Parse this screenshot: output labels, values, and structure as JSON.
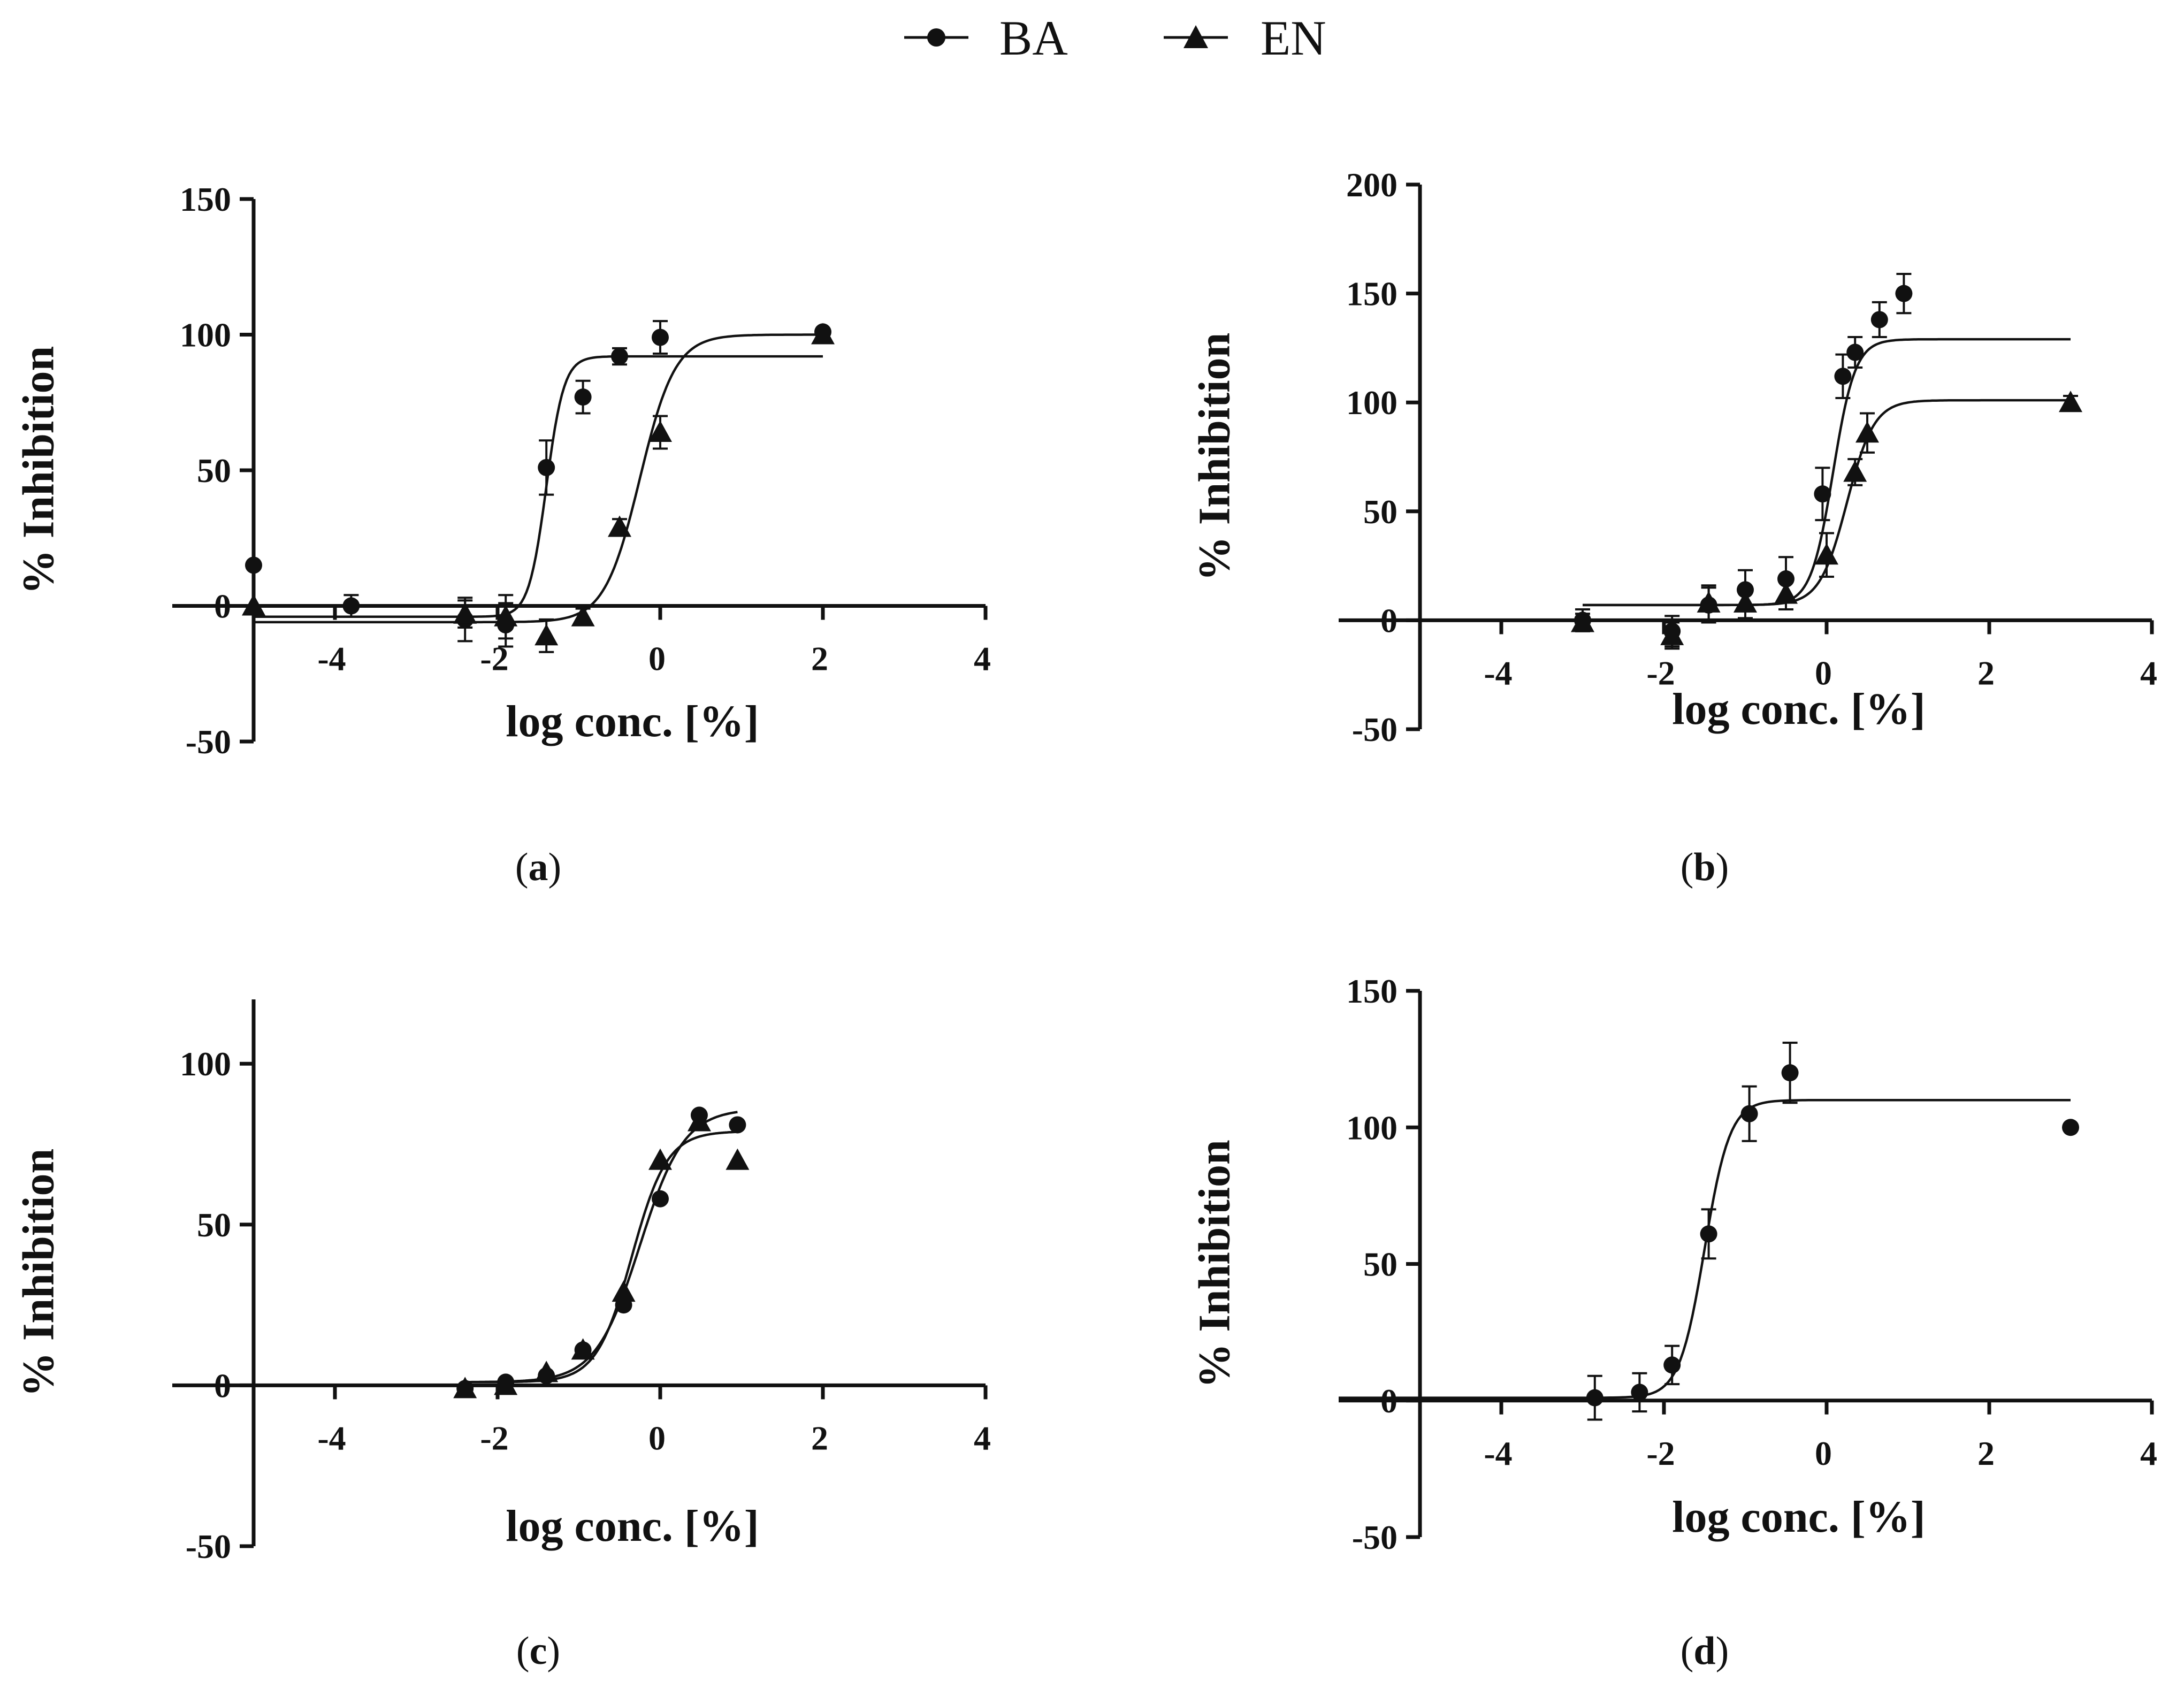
{
  "legend": {
    "items": [
      {
        "label": "BA",
        "marker": "circle"
      },
      {
        "label": "EN",
        "marker": "triangle"
      }
    ]
  },
  "chart_data": [
    {
      "panel": "a",
      "panel_label": {
        "open": "(",
        "letter": "a",
        "close": ")"
      },
      "type": "scatter",
      "xlabel": "log conc. [%]",
      "ylabel": "% Inhibition",
      "xlim": [
        -6,
        4
      ],
      "ylim": [
        -50,
        150
      ],
      "xticks": [
        -4,
        -2,
        0,
        2,
        4
      ],
      "yticks": [
        -50,
        0,
        50,
        100,
        150
      ],
      "series": [
        {
          "name": "BA",
          "marker": "circle",
          "points": [
            {
              "x": -5,
              "y": 15,
              "err": 0
            },
            {
              "x": -3.8,
              "y": 0,
              "err": 4
            },
            {
              "x": -2.4,
              "y": -5,
              "err": 8
            },
            {
              "x": -1.9,
              "y": -7,
              "err": 8
            },
            {
              "x": -1.4,
              "y": 51,
              "err": 10
            },
            {
              "x": -0.95,
              "y": 77,
              "err": 6
            },
            {
              "x": -0.5,
              "y": 92,
              "err": 3
            },
            {
              "x": 0,
              "y": 99,
              "err": 6
            },
            {
              "x": 2,
              "y": 101,
              "err": 0
            }
          ],
          "fit": {
            "bottom": -4,
            "top": 92,
            "logEC50": -1.4,
            "hill": 4,
            "xrange": [
              -5,
              2
            ]
          }
        },
        {
          "name": "EN",
          "marker": "triangle",
          "points": [
            {
              "x": -5,
              "y": 0,
              "err": 0
            },
            {
              "x": -2.4,
              "y": -3,
              "err": 5
            },
            {
              "x": -1.9,
              "y": -4,
              "err": 8
            },
            {
              "x": -1.4,
              "y": -11,
              "err": 6
            },
            {
              "x": -0.95,
              "y": -4,
              "err": 3
            },
            {
              "x": -0.5,
              "y": 29,
              "err": 3
            },
            {
              "x": 0,
              "y": 64,
              "err": 6
            },
            {
              "x": 2,
              "y": 100,
              "err": 0
            }
          ],
          "fit": {
            "bottom": -6,
            "top": 100,
            "logEC50": -0.25,
            "hill": 2,
            "xrange": [
              -5,
              2
            ]
          }
        }
      ]
    },
    {
      "panel": "b",
      "panel_label": {
        "open": "(",
        "letter": "b",
        "close": ")"
      },
      "type": "scatter",
      "xlabel": "log conc. [%]",
      "ylabel": "% Inhibition",
      "xlim": [
        -6,
        4
      ],
      "ylim": [
        -50,
        200
      ],
      "xticks": [
        -4,
        -2,
        0,
        2,
        4
      ],
      "yticks": [
        -50,
        0,
        50,
        100,
        150,
        200
      ],
      "series": [
        {
          "name": "BA",
          "marker": "circle",
          "points": [
            {
              "x": -3,
              "y": 0,
              "err": 5
            },
            {
              "x": -1.9,
              "y": -5,
              "err": 7
            },
            {
              "x": -1.45,
              "y": 7,
              "err": 8
            },
            {
              "x": -1.0,
              "y": 14,
              "err": 9
            },
            {
              "x": -0.5,
              "y": 19,
              "err": 10
            },
            {
              "x": -0.05,
              "y": 58,
              "err": 12
            },
            {
              "x": 0.2,
              "y": 112,
              "err": 10
            },
            {
              "x": 0.35,
              "y": 123,
              "err": 7
            },
            {
              "x": 0.65,
              "y": 138,
              "err": 8
            },
            {
              "x": 0.95,
              "y": 150,
              "err": 9
            }
          ],
          "fit": {
            "bottom": 7,
            "top": 129,
            "logEC50": 0.08,
            "hill": 3.2,
            "xrange": [
              -3,
              3
            ]
          }
        },
        {
          "name": "EN",
          "marker": "triangle",
          "points": [
            {
              "x": -3,
              "y": -1,
              "err": 4
            },
            {
              "x": -1.9,
              "y": -7,
              "err": 6
            },
            {
              "x": -1.45,
              "y": 8,
              "err": 8
            },
            {
              "x": -1.0,
              "y": 8,
              "err": 7
            },
            {
              "x": -0.5,
              "y": 12,
              "err": 7
            },
            {
              "x": 0,
              "y": 30,
              "err": 10
            },
            {
              "x": 0.35,
              "y": 68,
              "err": 6
            },
            {
              "x": 0.5,
              "y": 86,
              "err": 9
            },
            {
              "x": 3,
              "y": 100,
              "err": 3
            }
          ],
          "fit": {
            "bottom": 7,
            "top": 101,
            "logEC50": 0.25,
            "hill": 2.6,
            "xrange": [
              -3,
              3
            ]
          }
        }
      ]
    },
    {
      "panel": "c",
      "panel_label": {
        "open": "(",
        "letter": "c",
        "close": ")"
      },
      "type": "scatter",
      "xlabel": "log conc. [%]",
      "ylabel": "% Inhibition",
      "xlim": [
        -6,
        4
      ],
      "ylim": [
        -50,
        120
      ],
      "xticks": [
        -4,
        -2,
        0,
        2,
        4
      ],
      "yticks": [
        -50,
        0,
        50,
        100
      ],
      "series": [
        {
          "name": "BA",
          "marker": "circle",
          "points": [
            {
              "x": -2.4,
              "y": -1,
              "err": 0
            },
            {
              "x": -1.9,
              "y": 1,
              "err": 0
            },
            {
              "x": -1.4,
              "y": 3,
              "err": 0
            },
            {
              "x": -0.95,
              "y": 11,
              "err": 0
            },
            {
              "x": -0.45,
              "y": 25,
              "err": 0
            },
            {
              "x": 0,
              "y": 58,
              "err": 0
            },
            {
              "x": 0.48,
              "y": 84,
              "err": 0
            },
            {
              "x": 0.95,
              "y": 81,
              "err": 0
            }
          ],
          "fit": {
            "bottom": 1,
            "top": 86,
            "logEC50": -0.25,
            "hill": 1.6,
            "xrange": [
              -2.4,
              0.95
            ]
          }
        },
        {
          "name": "EN",
          "marker": "triangle",
          "points": [
            {
              "x": -2.4,
              "y": -1,
              "err": 0
            },
            {
              "x": -1.9,
              "y": 0,
              "err": 0
            },
            {
              "x": -1.4,
              "y": 4,
              "err": 0
            },
            {
              "x": -0.95,
              "y": 11,
              "err": 0
            },
            {
              "x": -0.45,
              "y": 29,
              "err": 0
            },
            {
              "x": 0,
              "y": 70,
              "err": 0
            },
            {
              "x": 0.48,
              "y": 82,
              "err": 0
            },
            {
              "x": 0.95,
              "y": 70,
              "err": 0
            }
          ],
          "fit": {
            "bottom": 1,
            "top": 79,
            "logEC50": -0.35,
            "hill": 2.0,
            "xrange": [
              -2.4,
              0.95
            ]
          }
        }
      ]
    },
    {
      "panel": "d",
      "panel_label": {
        "open": "(",
        "letter": "d",
        "close": ")"
      },
      "type": "scatter",
      "xlabel": "log conc. [%]",
      "ylabel": "% Inhibition",
      "xlim": [
        -6,
        4
      ],
      "ylim": [
        -50,
        150
      ],
      "xticks": [
        -4,
        -2,
        0,
        2,
        4
      ],
      "yticks": [
        -50,
        0,
        50,
        100,
        150
      ],
      "series": [
        {
          "name": "BA",
          "marker": "circle",
          "points": [
            {
              "x": -2.85,
              "y": 1,
              "err": 8
            },
            {
              "x": -2.3,
              "y": 3,
              "err": 7
            },
            {
              "x": -1.9,
              "y": 13,
              "err": 7
            },
            {
              "x": -1.45,
              "y": 61,
              "err": 9
            },
            {
              "x": -0.95,
              "y": 105,
              "err": 10
            },
            {
              "x": -0.45,
              "y": 120,
              "err": 11
            },
            {
              "x": 3,
              "y": 100,
              "err": 0
            }
          ],
          "fit": {
            "bottom": 1,
            "top": 110,
            "logEC50": -1.5,
            "hill": 2.8,
            "xrange": [
              -6,
              3
            ]
          }
        }
      ]
    }
  ]
}
